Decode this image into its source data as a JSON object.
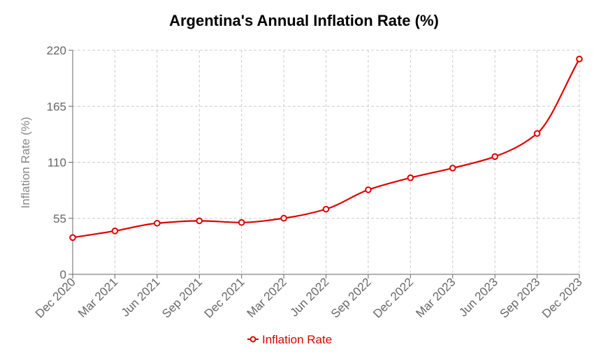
{
  "chart_data": {
    "type": "line",
    "title": "Argentina's Annual Inflation Rate (%)",
    "xlabel": "",
    "ylabel": "Inflation Rate (%)",
    "categories": [
      "Dec 2020",
      "Mar 2021",
      "Jun 2021",
      "Sep 2021",
      "Dec 2021",
      "Mar 2022",
      "Jun 2022",
      "Sep 2022",
      "Dec 2022",
      "Mar 2023",
      "Jun 2023",
      "Sep 2023",
      "Dec 2023"
    ],
    "series": [
      {
        "name": "Inflation Rate",
        "color": "#e00000",
        "values": [
          36.1,
          42.6,
          50.2,
          52.5,
          50.9,
          55.1,
          64.0,
          83.0,
          94.8,
          104.3,
          115.6,
          138.3,
          211.4
        ]
      }
    ],
    "ylim": [
      0,
      220
    ],
    "yticks": [
      0,
      55,
      110,
      165,
      220
    ],
    "grid": true,
    "legend": "bottom-center"
  }
}
